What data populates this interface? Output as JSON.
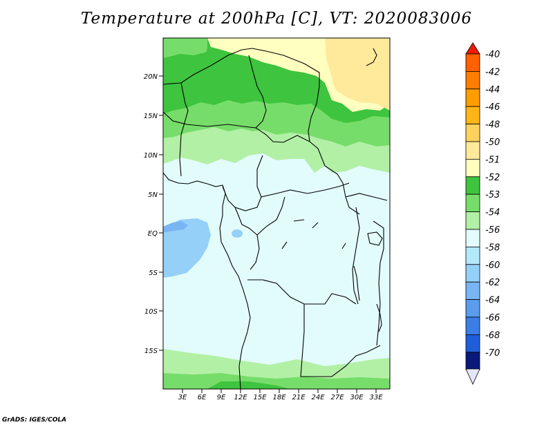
{
  "title": "Temperature at 200hPa [C], VT: 2020083006",
  "credit": "GrADS: IGES/COLA",
  "map": {
    "lat_range": [
      -19.5,
      25
    ],
    "lon_range": [
      0,
      35
    ],
    "lat_ticks": [
      {
        "value": 20,
        "label": "20N"
      },
      {
        "value": 15,
        "label": "15N"
      },
      {
        "value": 10,
        "label": "10N"
      },
      {
        "value": 5,
        "label": "5N"
      },
      {
        "value": 0,
        "label": "EQ"
      },
      {
        "value": -5,
        "label": "5S"
      },
      {
        "value": -10,
        "label": "10S"
      },
      {
        "value": -15,
        "label": "15S"
      }
    ],
    "lon_ticks": [
      {
        "value": 3,
        "label": "3E"
      },
      {
        "value": 6,
        "label": "6E"
      },
      {
        "value": 9,
        "label": "9E"
      },
      {
        "value": 12,
        "label": "12E"
      },
      {
        "value": 15,
        "label": "15E"
      },
      {
        "value": 18,
        "label": "18E"
      },
      {
        "value": 21,
        "label": "21E"
      },
      {
        "value": 24,
        "label": "24E"
      },
      {
        "value": 27,
        "label": "27E"
      },
      {
        "value": 30,
        "label": "30E"
      },
      {
        "value": 33,
        "label": "33E"
      }
    ]
  },
  "colorbar": {
    "levels": [
      {
        "label": "-40",
        "color": "#ff6000"
      },
      {
        "label": "-42",
        "color": "#ff7d00"
      },
      {
        "label": "-44",
        "color": "#ff9c00"
      },
      {
        "label": "-46",
        "color": "#ffb619"
      },
      {
        "label": "-48",
        "color": "#ffd25e"
      },
      {
        "label": "-50",
        "color": "#ffe99a"
      },
      {
        "label": "-51",
        "color": "#ffffc0"
      },
      {
        "label": "-52",
        "color": "#3ec43e"
      },
      {
        "label": "-53",
        "color": "#77dd6a"
      },
      {
        "label": "-54",
        "color": "#b2f0a6"
      },
      {
        "label": "-56",
        "color": "#e2fbfb"
      },
      {
        "label": "-58",
        "color": "#b4e8fc"
      },
      {
        "label": "-60",
        "color": "#95d0f8"
      },
      {
        "label": "-62",
        "color": "#78b5f2"
      },
      {
        "label": "-64",
        "color": "#5b9cec"
      },
      {
        "label": "-66",
        "color": "#3c7de6"
      },
      {
        "label": "-68",
        "color": "#1f5ed9"
      },
      {
        "label": "-70",
        "color": "#1239b9"
      }
    ],
    "top_arrow_color": "#ee1c00",
    "bottom_arrow_color": "#e6e6fa",
    "last_box_color": "#0a1a78"
  },
  "colors": {
    "yellow_warm": "#ffe99a",
    "yellow_pale": "#ffffc0",
    "green_dark": "#3ec43e",
    "green_mid": "#77dd6a",
    "green_light": "#b2f0a6",
    "cyan_pale": "#e2fbfb",
    "blue_light": "#95d0f8",
    "blue_mid": "#78b5f2"
  }
}
